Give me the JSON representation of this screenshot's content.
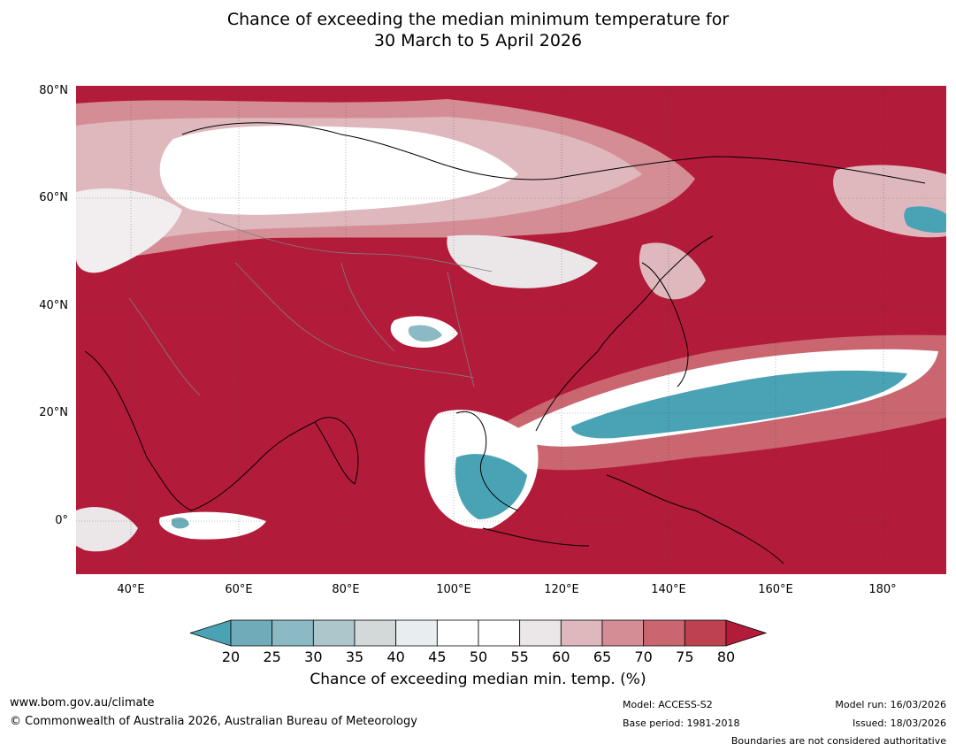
{
  "title": {
    "line1": "Chance of exceeding the median minimum temperature for",
    "line2": "30 March to 5 April 2026"
  },
  "map": {
    "lat_labels": [
      "80°N",
      "60°N",
      "40°N",
      "20°N",
      "0°"
    ],
    "lon_labels": [
      "40°E",
      "60°E",
      "80°E",
      "100°E",
      "120°E",
      "140°E",
      "160°E",
      "180°"
    ],
    "colors": {
      "land_dominant": "#b31b3a",
      "cool": "#4aa3b5",
      "neutral": "#ffffff"
    }
  },
  "legend": {
    "ticks": [
      "20",
      "25",
      "30",
      "35",
      "40",
      "45",
      "50",
      "55",
      "60",
      "65",
      "70",
      "75",
      "80"
    ],
    "colors": [
      "#4aa3b5",
      "#6fabb8",
      "#8bbac5",
      "#adc6cc",
      "#d3d9d9",
      "#e8eef0",
      "#ffffff",
      "#ffffff",
      "#ebe7e8",
      "#dfb8bd",
      "#d48d95",
      "#c9666f",
      "#bd414f",
      "#b31b3a"
    ],
    "label": "Chance of exceeding median min. temp. (%)"
  },
  "footer": {
    "website": "www.bom.gov.au/climate",
    "copyright": "© Commonwealth of Australia 2026, Australian Bureau of Meteorology",
    "model": "Model: ACCESS-S2",
    "base_period": "Base period: 1981-2018",
    "model_run": "Model run: 16/03/2026",
    "issued": "Issued: 18/03/2026",
    "boundaries": "Boundaries are not considered authoritative"
  }
}
